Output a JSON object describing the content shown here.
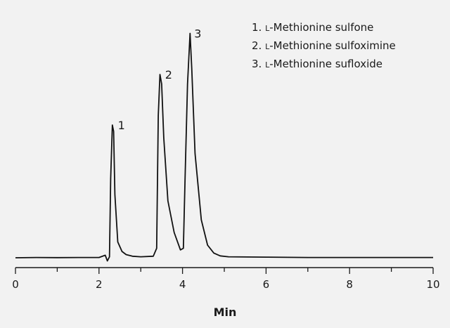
{
  "chart_data": {
    "type": "line",
    "title": "",
    "xlabel": "Min",
    "ylabel": "",
    "xlim": [
      0,
      10
    ],
    "x_ticks_major": [
      0,
      2,
      4,
      6,
      8,
      10
    ],
    "x_tick_labels": [
      "0",
      "2",
      "4",
      "6",
      "8",
      "10"
    ],
    "x_ticks_minor": [
      1,
      3,
      5,
      7,
      9
    ],
    "grid": false,
    "legend_position": "top-right",
    "legend": [
      {
        "prefix": "1. ",
        "small_caps": "L",
        "rest": "-Methionine sulfone"
      },
      {
        "prefix": "2. ",
        "small_caps": "L",
        "rest": "-Methionine sulfoximine"
      },
      {
        "prefix": "3. ",
        "small_caps": "L",
        "rest": "-Methionine sufloxide"
      }
    ],
    "series": [
      {
        "x": [
          0,
          0.5,
          1.0,
          1.5,
          2.0,
          2.15,
          2.2,
          2.25,
          2.28,
          2.32,
          2.35,
          2.38,
          2.45,
          2.55,
          2.65,
          2.8,
          3.0,
          3.3,
          3.38,
          3.42,
          3.46,
          3.5,
          3.55,
          3.65,
          3.8,
          3.95,
          4.02,
          4.06,
          4.12,
          4.18,
          4.22,
          4.3,
          4.45,
          4.6,
          4.75,
          4.9,
          5.1,
          6,
          7,
          8,
          9,
          10
        ],
        "y": [
          0,
          0.1,
          0.05,
          0.1,
          0.1,
          0.8,
          -1.0,
          0.3,
          25,
          42,
          40,
          20,
          5,
          2,
          1,
          0.5,
          0.3,
          0.5,
          3,
          45,
          58,
          55,
          38,
          18,
          8,
          2.5,
          3,
          25,
          55,
          71,
          60,
          33,
          12,
          4,
          1.5,
          0.6,
          0.3,
          0.2,
          0.1,
          0.1,
          0.1,
          0.1
        ]
      }
    ],
    "peak_labels": [
      {
        "label": "1",
        "x": 2.35,
        "y": 42
      },
      {
        "label": "2",
        "x": 3.48,
        "y": 58
      },
      {
        "label": "3",
        "x": 4.18,
        "y": 71
      }
    ]
  }
}
